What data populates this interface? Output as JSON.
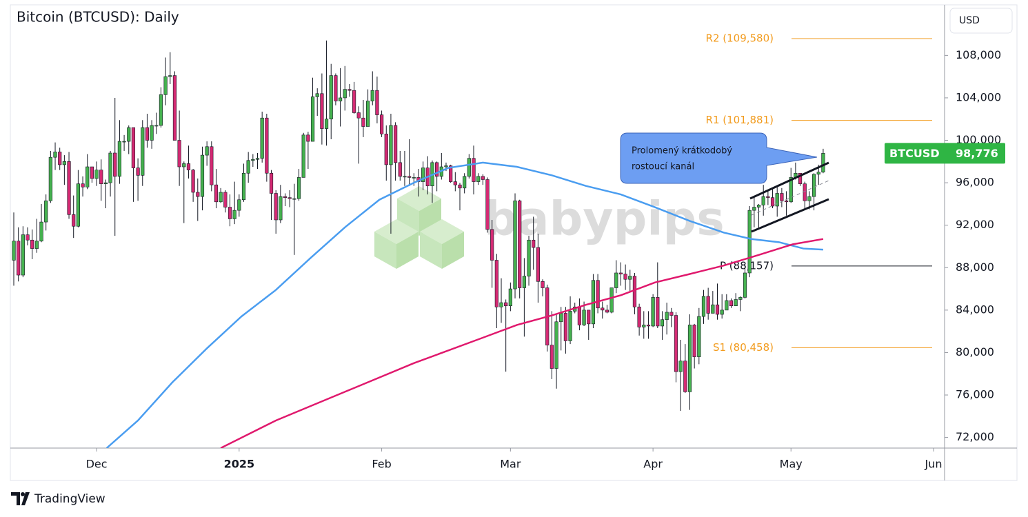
{
  "chart_data": {
    "type": "candlestick",
    "title": "Bitcoin (BTCUSD): Daily",
    "currency": "USD",
    "brand": "TradingView",
    "watermark": "babypips",
    "callout": [
      "Prolomený krátkodobý",
      "rostoucí kanál"
    ],
    "last_price": {
      "symbol": "BTCUSD",
      "value": 98776,
      "label": "98,776",
      "color": "#2fb544"
    },
    "up_color": "#45b14f",
    "down_color": "#d42a73",
    "xlim": [
      -0.75,
      202.4
    ],
    "ylim": [
      71000,
      112700
    ],
    "xticks": [
      {
        "value": 18,
        "label": "Dec"
      },
      {
        "value": 49,
        "label": "2025"
      },
      {
        "value": 80,
        "label": "Feb"
      },
      {
        "value": 108,
        "label": "Mar"
      },
      {
        "value": 139,
        "label": "Apr"
      },
      {
        "value": 169,
        "label": "May"
      },
      {
        "value": 200,
        "label": "Jun"
      }
    ],
    "yticks": [
      {
        "value": 72000,
        "label": "72,000"
      },
      {
        "value": 76000,
        "label": "76,000"
      },
      {
        "value": 80000,
        "label": "80,000"
      },
      {
        "value": 84000,
        "label": "84,000"
      },
      {
        "value": 88000,
        "label": "88,000"
      },
      {
        "value": 92000,
        "label": "92,000"
      },
      {
        "value": 96000,
        "label": "96,000"
      },
      {
        "value": 100000,
        "label": "100,000"
      },
      {
        "value": 104000,
        "label": "104,000"
      },
      {
        "value": 108000,
        "label": "108,000"
      }
    ],
    "pivots": [
      {
        "label": "R2 (109,580)",
        "value": 109580,
        "color": "#f29b1d"
      },
      {
        "label": "R1 (101,881)",
        "value": 101881,
        "color": "#f29b1d"
      },
      {
        "label": "P (88,157)",
        "value": 88157,
        "color": "#131722"
      },
      {
        "label": "S1 (80,458)",
        "value": 80458,
        "color": "#f29b1d"
      }
    ],
    "lines": [
      {
        "color": "#4a9df0",
        "x": [
          20.2,
          27,
          34.5,
          42,
          49.5,
          57,
          64.5,
          72,
          79.5,
          87,
          94.5,
          102,
          109.4,
          117,
          124.4,
          132,
          139.4,
          147,
          154.4,
          160.4,
          166.4,
          171.7,
          176
        ],
        "values": [
          71000,
          73600,
          77200,
          80400,
          83400,
          85900,
          88900,
          91800,
          94400,
          96000,
          97400,
          97900,
          97500,
          96700,
          95700,
          94900,
          93700,
          92400,
          91300,
          90700,
          90400,
          89800,
          89700
        ]
      },
      {
        "color": "#e0196d",
        "x": [
          45,
          57,
          72,
          87,
          102,
          109.4,
          117,
          124.4,
          132,
          139.4,
          147,
          154.4,
          162,
          169.4,
          176
        ],
        "values": [
          71000,
          73600,
          76300,
          79000,
          81400,
          82600,
          83500,
          84500,
          85400,
          86600,
          87400,
          88200,
          89200,
          90200,
          90700
        ]
      }
    ],
    "x": [
      0,
      1,
      2,
      3,
      4,
      5,
      6,
      7,
      8,
      9,
      10,
      11,
      12,
      13,
      14,
      15,
      16,
      17,
      18,
      19,
      20,
      21,
      22,
      23,
      24,
      25,
      26,
      27,
      28,
      29,
      30,
      31,
      32,
      33,
      34,
      35,
      36,
      37,
      38,
      39,
      40,
      41,
      42,
      43,
      44,
      45,
      46,
      47,
      48,
      49,
      50,
      51,
      52,
      53,
      54,
      55,
      56,
      57,
      58,
      59,
      60,
      61,
      62,
      63,
      64,
      65,
      66,
      67,
      68,
      69,
      70,
      71,
      72,
      73,
      74,
      75,
      76,
      77,
      78,
      79,
      80,
      81,
      82,
      83,
      84,
      85,
      86,
      87,
      88,
      89,
      90,
      91,
      92,
      93,
      94,
      95,
      96,
      97,
      98,
      99,
      100,
      101,
      102,
      103,
      104,
      105,
      106,
      107,
      108,
      109,
      110,
      111,
      112,
      113,
      114,
      115,
      116,
      117,
      118,
      119,
      120,
      121,
      122,
      123,
      124,
      125,
      126,
      127,
      128,
      129,
      130,
      131,
      132,
      133,
      134,
      135,
      136,
      137,
      138,
      139,
      140,
      141,
      142,
      143,
      144,
      145,
      146,
      147,
      148,
      149,
      150,
      151,
      152,
      153,
      154,
      155,
      156,
      157,
      158,
      159,
      160,
      161,
      162,
      163,
      164,
      165,
      166,
      167,
      168,
      169,
      170,
      171,
      172,
      173,
      174,
      175,
      176
    ],
    "open": [
      88700,
      90500,
      87300,
      91100,
      90600,
      89800,
      90500,
      92300,
      94300,
      98400,
      98900,
      97700,
      98000,
      93000,
      91900,
      95900,
      95600,
      97500,
      96400,
      97200,
      95900,
      96000,
      98800,
      96600,
      99900,
      99900,
      101200,
      97400,
      96700,
      101200,
      100000,
      101400,
      101400,
      104300,
      106000,
      106100,
      100000,
      97500,
      97800,
      97200,
      95100,
      94700,
      98600,
      99400,
      95800,
      94200,
      95100,
      93700,
      92600,
      93400,
      94400,
      96900,
      98100,
      98200,
      98300,
      102100,
      96900,
      95000,
      92500,
      94700,
      94600,
      94500,
      94500,
      96500,
      100500,
      99900,
      104100,
      104400,
      101100,
      102000,
      106100,
      103700,
      104000,
      104800,
      104700,
      102600,
      102100,
      101300,
      103700,
      104700,
      102400,
      100600,
      97700,
      101400,
      97900,
      96600,
      96600,
      96500,
      96500,
      96100,
      97400,
      95700,
      97900,
      96600,
      97500,
      97600,
      96100,
      95800,
      95500,
      96600,
      98300,
      96100,
      96600,
      96300,
      91600,
      88700,
      84300,
      84700,
      84400,
      86000,
      94300,
      86100,
      87200,
      90600,
      89900,
      86700,
      86100,
      80700,
      78500,
      82900,
      83700,
      81100,
      83900,
      84300,
      82600,
      84000,
      82700,
      86800,
      84200,
      84000,
      83800,
      86100,
      87500,
      87400,
      86900,
      87200,
      84300,
      82400,
      82600,
      82500,
      85200,
      82500,
      83100,
      83800,
      83500,
      78200,
      79200,
      76300,
      82600,
      79600,
      83400,
      85300,
      83700,
      84500,
      83600,
      84000,
      84900,
      84400,
      85000,
      85200,
      87500,
      93400,
      93700,
      93900,
      94700,
      94600,
      93800,
      95000,
      94300,
      94200,
      96500,
      96900,
      95900,
      94300,
      94700,
      96800,
      97000
    ],
    "high": [
      93200,
      91800,
      91900,
      91800,
      91600,
      92600,
      94000,
      94900,
      99000,
      99800,
      99300,
      98600,
      98900,
      94800,
      97200,
      96600,
      98700,
      97500,
      98000,
      98200,
      96300,
      99000,
      104000,
      101900,
      100500,
      101400,
      101200,
      98300,
      101900,
      102500,
      101900,
      102600,
      105000,
      107800,
      108300,
      106500,
      102800,
      98000,
      99500,
      97300,
      96400,
      99400,
      99900,
      99900,
      97300,
      95500,
      95300,
      94900,
      96100,
      94900,
      97800,
      98900,
      98700,
      98800,
      102700,
      102500,
      97200,
      95300,
      95800,
      95000,
      95300,
      95900,
      97300,
      100700,
      100800,
      105900,
      104900,
      106300,
      109400,
      107200,
      106300,
      106800,
      107000,
      105300,
      105500,
      103200,
      103800,
      104800,
      106500,
      106000,
      102800,
      101400,
      102500,
      101700,
      99000,
      99000,
      100100,
      96900,
      97300,
      98000,
      98500,
      98100,
      98000,
      98800,
      97900,
      97700,
      97000,
      96000,
      96900,
      98700,
      99500,
      96900,
      96800,
      96500,
      92500,
      89300,
      87000,
      85000,
      86600,
      95000,
      94400,
      88900,
      91000,
      92800,
      91200,
      86900,
      86400,
      83900,
      83600,
      84300,
      84300,
      85300,
      84700,
      85100,
      84800,
      84000,
      87400,
      87400,
      84800,
      84500,
      86100,
      88700,
      88500,
      88300,
      87800,
      87500,
      84600,
      83900,
      83900,
      85500,
      88500,
      83900,
      84700,
      84200,
      83800,
      81200,
      80800,
      83600,
      82700,
      84200,
      85900,
      86100,
      85800,
      86500,
      85500,
      85500,
      85100,
      85600,
      85300,
      88500,
      93800,
      94700,
      94000,
      95800,
      95300,
      95400,
      95600,
      95500,
      95200,
      97400,
      97900,
      96900,
      96100,
      95200,
      96900,
      97700,
      99200
    ],
    "low": [
      86300,
      86700,
      87100,
      90100,
      88800,
      89400,
      90400,
      91500,
      94100,
      97200,
      97200,
      95800,
      92600,
      90800,
      91800,
      94700,
      95400,
      96000,
      95700,
      94300,
      93600,
      94700,
      91000,
      95900,
      99000,
      98700,
      94200,
      94300,
      95700,
      99300,
      99200,
      100600,
      101200,
      103300,
      105300,
      100000,
      95700,
      92200,
      96400,
      94200,
      92400,
      93400,
      97600,
      95200,
      93600,
      94100,
      93200,
      91900,
      92100,
      92800,
      94200,
      96000,
      97500,
      97300,
      97900,
      96100,
      92500,
      91200,
      92200,
      93800,
      93700,
      89200,
      94300,
      96500,
      97300,
      99900,
      102300,
      99600,
      99500,
      100100,
      103300,
      101300,
      102800,
      104100,
      102500,
      97800,
      100300,
      101300,
      103300,
      101600,
      100300,
      96200,
      91200,
      96200,
      96200,
      95700,
      95700,
      95700,
      94700,
      95300,
      94900,
      94100,
      95200,
      96300,
      97100,
      96000,
      95200,
      93400,
      95000,
      96400,
      94900,
      95800,
      95800,
      91300,
      86100,
      82300,
      82800,
      78200,
      83900,
      85100,
      85100,
      81500,
      86300,
      87800,
      84700,
      85300,
      80100,
      77500,
      76600,
      80200,
      79900,
      80800,
      83700,
      82100,
      82500,
      81200,
      82300,
      83700,
      83200,
      83700,
      83700,
      85600,
      86300,
      85900,
      85800,
      83600,
      81600,
      81300,
      81300,
      82400,
      82300,
      81200,
      81700,
      82400,
      77200,
      74500,
      76200,
      74600,
      78500,
      78900,
      82700,
      83100,
      83700,
      83100,
      83200,
      84000,
      84200,
      84400,
      83900,
      85100,
      87100,
      91800,
      91700,
      92900,
      93900,
      93600,
      92800,
      93700,
      92900,
      94100,
      96300,
      95700,
      93600,
      93500,
      93400,
      95800,
      96900
    ],
    "close": [
      90500,
      87300,
      91100,
      90600,
      89800,
      90500,
      92300,
      94300,
      98400,
      98900,
      97700,
      98000,
      93000,
      91900,
      95900,
      95600,
      97500,
      96400,
      97200,
      95900,
      96000,
      98800,
      96600,
      99900,
      99900,
      101200,
      97400,
      96700,
      101200,
      100000,
      101400,
      101400,
      104300,
      106000,
      106100,
      100000,
      97500,
      97800,
      97200,
      95100,
      94700,
      98600,
      99400,
      95800,
      94200,
      95100,
      93700,
      92600,
      93400,
      94400,
      96900,
      98100,
      98200,
      98300,
      102100,
      96900,
      95000,
      92500,
      94700,
      94600,
      94500,
      94500,
      96500,
      100500,
      99900,
      104100,
      104400,
      101100,
      102000,
      106100,
      103700,
      104000,
      104800,
      104700,
      102600,
      102100,
      101300,
      103700,
      104700,
      102400,
      100600,
      97700,
      101400,
      97900,
      96600,
      96600,
      96500,
      96500,
      96100,
      97400,
      95700,
      97900,
      96600,
      97500,
      97600,
      96100,
      95800,
      95500,
      96600,
      98300,
      96100,
      96600,
      96300,
      91600,
      88700,
      84300,
      84700,
      84400,
      86000,
      94300,
      86100,
      87200,
      90600,
      89900,
      86700,
      86100,
      80700,
      78500,
      82900,
      83700,
      81100,
      83900,
      84300,
      82600,
      84000,
      82700,
      86800,
      84200,
      84000,
      83800,
      86100,
      87500,
      87400,
      86900,
      87200,
      84300,
      82400,
      82600,
      82500,
      85200,
      82500,
      83100,
      83800,
      83500,
      78200,
      79200,
      76300,
      82600,
      79600,
      83400,
      85300,
      83700,
      84500,
      83600,
      84000,
      84900,
      84400,
      85000,
      85200,
      87500,
      93400,
      93700,
      93900,
      94700,
      94600,
      93800,
      95000,
      94300,
      94200,
      96500,
      96900,
      95900,
      94300,
      94700,
      96800,
      97000,
      98776
    ]
  }
}
